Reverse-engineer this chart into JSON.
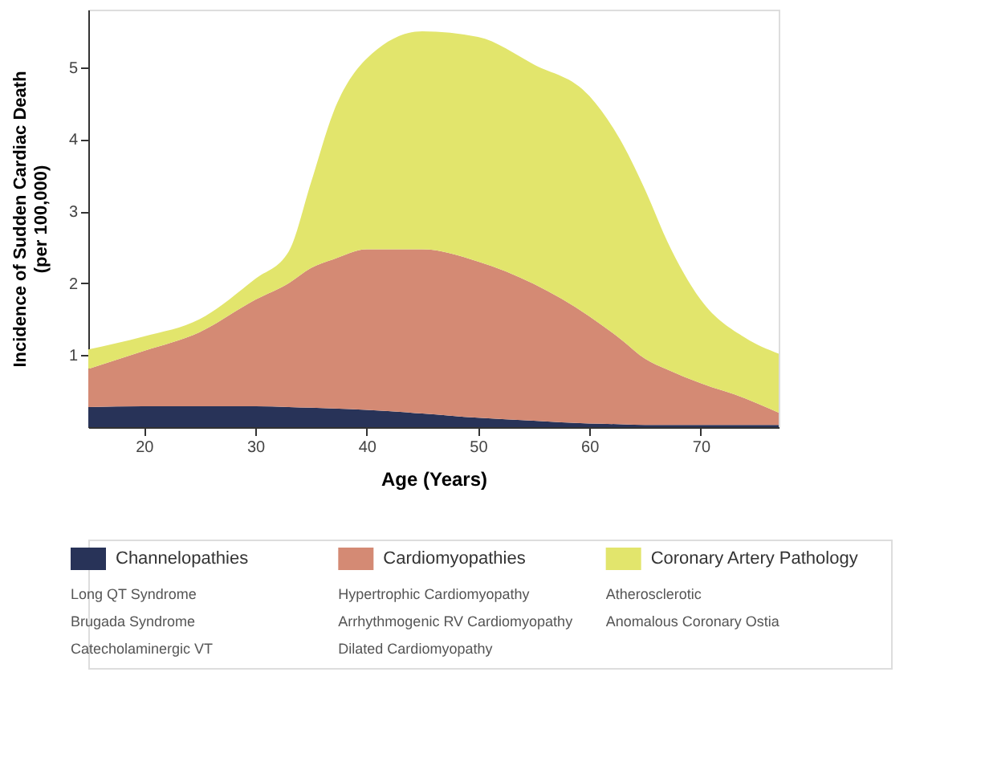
{
  "chart_data": {
    "type": "area",
    "stacked": true,
    "xlabel": "Age (Years)",
    "ylabel": "Incidence of Sudden Cardiac Death\n(per 100,000)",
    "x": [
      15,
      20,
      25,
      30,
      33,
      35,
      37,
      40,
      45,
      50,
      55,
      60,
      63,
      65,
      67,
      70,
      74,
      77
    ],
    "series": [
      {
        "name": "Channelopathies",
        "color": "#283358",
        "values": [
          0.28,
          0.29,
          0.29,
          0.29,
          0.28,
          0.27,
          0.26,
          0.24,
          0.19,
          0.13,
          0.09,
          0.05,
          0.04,
          0.03,
          0.03,
          0.03,
          0.03,
          0.03
        ]
      },
      {
        "name": "Cardiomyopathies",
        "color": "#d48a74",
        "values": [
          0.53,
          0.77,
          1.03,
          1.48,
          1.72,
          1.94,
          2.07,
          2.23,
          2.28,
          2.17,
          1.9,
          1.49,
          1.16,
          0.92,
          0.77,
          0.58,
          0.37,
          0.17
        ]
      },
      {
        "name": "Coronary Artery Pathology",
        "color": "#e2e56c",
        "values": [
          0.27,
          0.2,
          0.18,
          0.29,
          0.44,
          1.19,
          2.04,
          2.65,
          3.03,
          3.12,
          3.05,
          3.06,
          2.73,
          2.35,
          1.78,
          1.16,
          0.84,
          0.82
        ]
      }
    ],
    "xlim": [
      15,
      77
    ],
    "ylim": [
      0,
      5.8
    ],
    "xticks": [
      20,
      30,
      40,
      50,
      60,
      70
    ],
    "yticks": [
      1,
      2,
      3,
      4,
      5
    ],
    "grid": false,
    "legend": "bottom",
    "annotations": [
      "Long QT Syndrome",
      "Hypertrophic Cardiomyopathy",
      "Atherosclerotic",
      "Brugada Syndrome",
      "Arrhythmogenic RV Cardiomyopathy",
      "Anomalous Coronary Ostia",
      "Catecholaminergic VT",
      "Dilated Cardiomyopathy"
    ]
  }
}
